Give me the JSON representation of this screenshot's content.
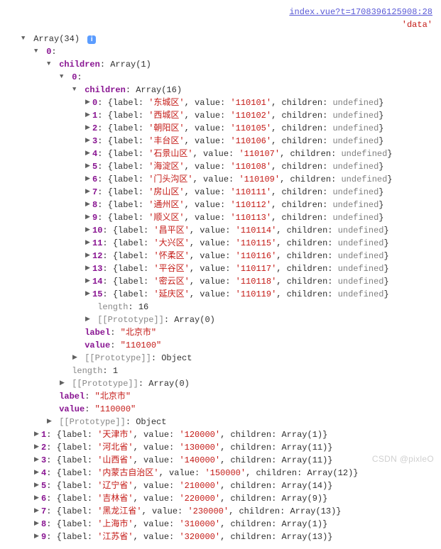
{
  "topLink": {
    "text": "index.vue?t=1708396125908:28",
    "dataLabel": "'data'"
  },
  "root": {
    "label": "Array(34)"
  },
  "level0": {
    "index": "0"
  },
  "level0_children": {
    "key": "children",
    "value": "Array(1)"
  },
  "level0_0": {
    "index": "0"
  },
  "level0_0_children": {
    "key": "children",
    "value": "Array(16)"
  },
  "districts": [
    {
      "idx": "0",
      "label": "'东城区'",
      "value": "'110101'"
    },
    {
      "idx": "1",
      "label": "'西城区'",
      "value": "'110102'"
    },
    {
      "idx": "2",
      "label": "'朝阳区'",
      "value": "'110105'"
    },
    {
      "idx": "3",
      "label": "'丰台区'",
      "value": "'110106'"
    },
    {
      "idx": "4",
      "label": "'石景山区'",
      "value": "'110107'"
    },
    {
      "idx": "5",
      "label": "'海淀区'",
      "value": "'110108'"
    },
    {
      "idx": "6",
      "label": "'门头沟区'",
      "value": "'110109'"
    },
    {
      "idx": "7",
      "label": "'房山区'",
      "value": "'110111'"
    },
    {
      "idx": "8",
      "label": "'通州区'",
      "value": "'110112'"
    },
    {
      "idx": "9",
      "label": "'顺义区'",
      "value": "'110113'"
    },
    {
      "idx": "10",
      "label": "'昌平区'",
      "value": "'110114'"
    },
    {
      "idx": "11",
      "label": "'大兴区'",
      "value": "'110115'"
    },
    {
      "idx": "12",
      "label": "'怀柔区'",
      "value": "'110116'"
    },
    {
      "idx": "13",
      "label": "'平谷区'",
      "value": "'110117'"
    },
    {
      "idx": "14",
      "label": "'密云区'",
      "value": "'110118'"
    },
    {
      "idx": "15",
      "label": "'延庆区'",
      "value": "'110119'"
    }
  ],
  "districtParts": {
    "labelKey": "label",
    "valueKey": "value",
    "childrenKey": "children",
    "undef": "undefined"
  },
  "inner": {
    "lengthKey": "length",
    "lengthVal16": "16",
    "protoKey": "[[Prototype]]",
    "protoArr0": "Array(0)",
    "labelKey": "label",
    "labelVal_city": "\"北京市\"",
    "valueKey": "value",
    "valueVal_city": "\"110100\"",
    "protoObj": "Object",
    "lengthVal1": "1",
    "labelVal_prov": "\"北京市\"",
    "valueVal_prov": "\"110000\""
  },
  "provinces": [
    {
      "idx": "1",
      "label": "'天津市'",
      "value": "'120000'",
      "children": "Array(1)"
    },
    {
      "idx": "2",
      "label": "'河北省'",
      "value": "'130000'",
      "children": "Array(11)"
    },
    {
      "idx": "3",
      "label": "'山西省'",
      "value": "'140000'",
      "children": "Array(11)"
    },
    {
      "idx": "4",
      "label": "'内蒙古自治区'",
      "value": "'150000'",
      "children": "Array(12)"
    },
    {
      "idx": "5",
      "label": "'辽宁省'",
      "value": "'210000'",
      "children": "Array(14)"
    },
    {
      "idx": "6",
      "label": "'吉林省'",
      "value": "'220000'",
      "children": "Array(9)"
    },
    {
      "idx": "7",
      "label": "'黑龙江省'",
      "value": "'230000'",
      "children": "Array(13)"
    },
    {
      "idx": "8",
      "label": "'上海市'",
      "value": "'310000'",
      "children": "Array(1)"
    },
    {
      "idx": "9",
      "label": "'江苏省'",
      "value": "'320000'",
      "children": "Array(13)"
    }
  ],
  "watermark": "CSDN @pixleO",
  "colors": {
    "key": "#881391",
    "string": "#c41a16",
    "dim": "#888888",
    "link": "#5a5ad6",
    "badge": "#5b9dff"
  }
}
